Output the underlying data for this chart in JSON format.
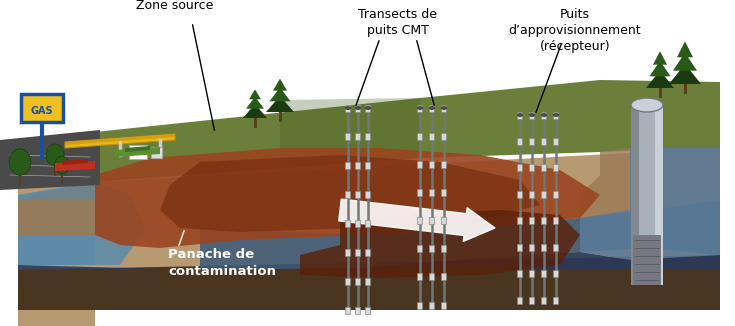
{
  "fig_width": 7.35,
  "fig_height": 3.26,
  "dpi": 100,
  "bg": "#ffffff",
  "colors": {
    "grass": "#6b7f3a",
    "grass_dark": "#4a5e25",
    "soil_tan": "#b89a72",
    "soil_mid": "#9a7a55",
    "soil_dark": "#7a5a35",
    "soil_bottom": "#4a3520",
    "contam_orange": "#9a4520",
    "contam_brown": "#7a3010",
    "contam_dark": "#5a2008",
    "water_blue": "#5a7a9a",
    "water_mid": "#3a5a7a",
    "water_dark": "#2a3a5a",
    "water_left": "#5a8aaa",
    "road_dark": "#3a3a3a",
    "road_gray": "#5a5a5a",
    "well_gray": "#909090",
    "well_light": "#b8c0c8",
    "well_dark": "#606870",
    "supply_well": "#a8b0b8",
    "supply_cap": "#c8d0d8",
    "white_arrow": "#e8e8e0",
    "gas_yellow": "#f0c020",
    "gas_blue": "#1a50a0",
    "canopy_yellow": "#e8b818",
    "tree_dark": "#1a3a10",
    "tree_med": "#2a5a18",
    "trunk": "#5a3a18"
  },
  "labels": {
    "zone_source": "Zone source",
    "transects": "Transects de\npuits CMT",
    "puits": "Puits\nd’approvisionnement\n(récepteur)",
    "panache": "Panache de\ncontamination"
  }
}
